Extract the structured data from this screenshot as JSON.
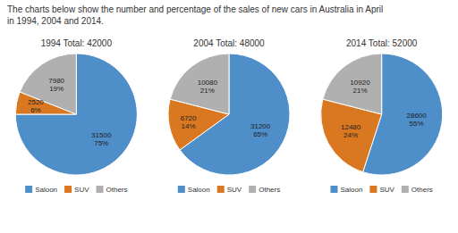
{
  "title": "The charts below show the number and percentage of the sales of new cars in Australia in April",
  "subtitle": "in 1994, 2004 and 2014.",
  "chart_data": [
    {
      "type": "pie",
      "title": "1994 Total: 42000",
      "categories": [
        "Saloon",
        "SUV",
        "Others"
      ],
      "values": [
        31500,
        2520,
        7980
      ],
      "value_labels": [
        "31500\n75%",
        "2520\n6%",
        "7980\n19%"
      ],
      "colors": [
        "#4E8EC9",
        "#D97820",
        "#B0B0B0"
      ],
      "data_labels": true,
      "legend": "bottom"
    },
    {
      "type": "pie",
      "title": "2004 Total: 48000",
      "categories": [
        "Saloon",
        "SUV",
        "Others"
      ],
      "values": [
        31200,
        6720,
        10080
      ],
      "value_labels": [
        "31200\n65%",
        "6720\n14%",
        "10080\n21%"
      ],
      "colors": [
        "#4E8EC9",
        "#D97820",
        "#B0B0B0"
      ],
      "data_labels": true,
      "legend": "bottom"
    },
    {
      "type": "pie",
      "title": "2014 Total: 52000",
      "categories": [
        "Saloon",
        "SUV",
        "Others"
      ],
      "values": [
        28600,
        12480,
        10920
      ],
      "value_labels": [
        "28600\n55%",
        "12480\n24%",
        "10920\n21%"
      ],
      "colors": [
        "#4E8EC9",
        "#D97820",
        "#B0B0B0"
      ],
      "data_labels": true,
      "legend": "bottom"
    }
  ]
}
